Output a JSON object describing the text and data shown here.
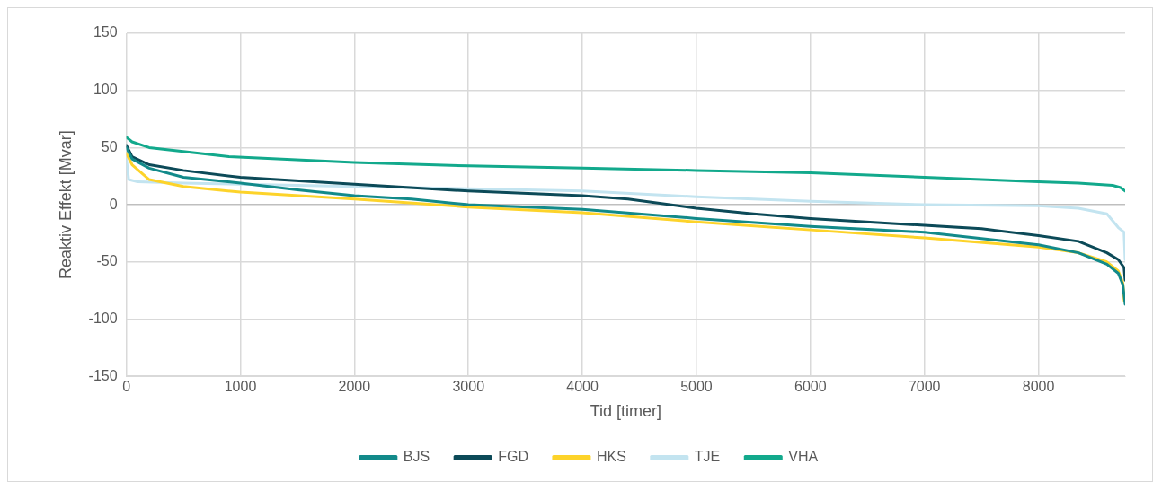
{
  "chart_data": {
    "type": "line",
    "xlabel": "Tid [timer]",
    "ylabel": "Reaktiv Effekt [Mvar]",
    "xlim": [
      0,
      8760
    ],
    "xticks": [
      0,
      1000,
      2000,
      3000,
      4000,
      5000,
      6000,
      7000,
      8000
    ],
    "ylim": [
      -150,
      150
    ],
    "yticks": [
      -150,
      -100,
      -50,
      0,
      50,
      100,
      150
    ],
    "grid": true,
    "legend": "bottom",
    "marker": "none",
    "line_style": "solid",
    "series": [
      {
        "name": "BJS",
        "color": "#128a8a",
        "x": [
          0,
          50,
          200,
          500,
          1000,
          1500,
          2000,
          2500,
          3000,
          4000,
          5000,
          6000,
          7000,
          8000,
          8350,
          8600,
          8700,
          8740,
          8760
        ],
        "values": [
          50,
          40,
          32,
          24,
          19,
          13,
          8,
          5,
          0,
          -4,
          -12,
          -19,
          -24,
          -35,
          -42,
          -52,
          -60,
          -70,
          -87
        ]
      },
      {
        "name": "FGD",
        "color": "#0c4a58",
        "x": [
          0,
          50,
          200,
          500,
          1000,
          2000,
          3000,
          4000,
          4400,
          5000,
          5500,
          6000,
          7000,
          7500,
          8000,
          8350,
          8600,
          8700,
          8750,
          8760
        ],
        "values": [
          52,
          42,
          35,
          30,
          24,
          18,
          12,
          8,
          5,
          -3,
          -8,
          -12,
          -18,
          -21,
          -27,
          -32,
          -42,
          -48,
          -55,
          -66
        ]
      },
      {
        "name": "HKS",
        "color": "#fdd32a",
        "x": [
          0,
          50,
          200,
          500,
          1000,
          2000,
          3000,
          4000,
          5000,
          6000,
          7000,
          8000,
          8350,
          8600,
          8700,
          8740,
          8752
        ],
        "values": [
          45,
          35,
          22,
          16,
          11,
          5,
          -2,
          -7,
          -15,
          -22,
          -29,
          -37,
          -42,
          -50,
          -58,
          -68,
          -84
        ]
      },
      {
        "name": "TJE",
        "color": "#c3e4f0",
        "x": [
          0,
          20,
          100,
          500,
          1000,
          2000,
          3000,
          4000,
          5000,
          6000,
          7000,
          8000,
          8350,
          8600,
          8700,
          8750,
          8760
        ],
        "values": [
          40,
          22,
          20,
          19,
          18,
          16,
          14,
          12,
          7,
          3,
          0,
          -1,
          -3,
          -8,
          -20,
          -24,
          -48
        ]
      },
      {
        "name": "VHA",
        "color": "#12a98c",
        "x": [
          0,
          50,
          200,
          900,
          2000,
          3000,
          4000,
          5000,
          6000,
          7000,
          8000,
          8350,
          8650,
          8720,
          8760
        ],
        "values": [
          59,
          55,
          50,
          42,
          37,
          34,
          32,
          30,
          28,
          24,
          20,
          19,
          17,
          15,
          12
        ]
      }
    ]
  }
}
